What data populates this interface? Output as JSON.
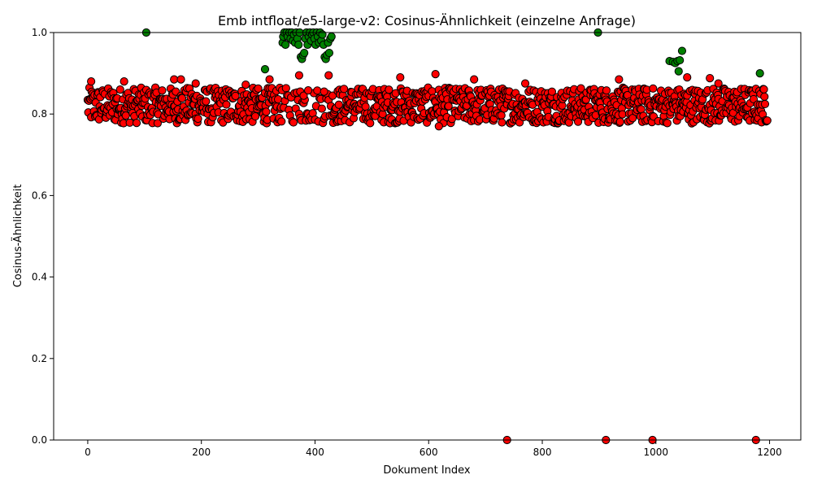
{
  "chart_data": {
    "type": "scatter",
    "title": "Emb intfloat/e5-large-v2: Cosinus-Ähnlichkeit (einzelne Anfrage)",
    "xlabel": "Dokument Index",
    "ylabel": "Cosinus-Ähnlichkeit",
    "xlim": [
      -60,
      1255
    ],
    "ylim": [
      0,
      1
    ],
    "xticks": [
      0,
      200,
      400,
      600,
      800,
      1000,
      1200
    ],
    "yticks": [
      0.0,
      0.2,
      0.4,
      0.6,
      0.8,
      1.0
    ],
    "ytick_labels": [
      "0.0",
      "0.2",
      "0.4",
      "0.6",
      "0.8",
      "1.0"
    ],
    "grid": false,
    "marker_edge_color": "#000000",
    "colors": {
      "relevant": "#008000",
      "irrelevant": "#ff0000"
    },
    "x_range": [
      0,
      1196
    ],
    "series": [
      {
        "key": "relevant",
        "color": "#008000",
        "points": [
          [
            103,
            1.0
          ],
          [
            312,
            0.91
          ],
          [
            343,
            0.975
          ],
          [
            344,
            0.99
          ],
          [
            346,
            1.0
          ],
          [
            348,
            0.97
          ],
          [
            350,
            1.0
          ],
          [
            352,
            0.99
          ],
          [
            355,
            1.0
          ],
          [
            357,
            0.985
          ],
          [
            359,
            1.0
          ],
          [
            361,
            0.98
          ],
          [
            363,
            0.995
          ],
          [
            365,
            0.975
          ],
          [
            367,
            1.0
          ],
          [
            369,
            0.985
          ],
          [
            371,
            0.97
          ],
          [
            373,
            1.0
          ],
          [
            375,
            0.94
          ],
          [
            377,
            0.935
          ],
          [
            379,
            0.945
          ],
          [
            381,
            0.95
          ],
          [
            383,
            0.985
          ],
          [
            385,
            1.0
          ],
          [
            387,
            0.97
          ],
          [
            389,
            0.99
          ],
          [
            391,
            1.0
          ],
          [
            393,
            0.98
          ],
          [
            395,
            0.995
          ],
          [
            397,
            1.0
          ],
          [
            399,
            0.985
          ],
          [
            401,
            0.97
          ],
          [
            403,
            1.0
          ],
          [
            405,
            0.99
          ],
          [
            407,
            0.975
          ],
          [
            409,
            1.0
          ],
          [
            411,
            0.98
          ],
          [
            413,
            0.995
          ],
          [
            415,
            0.97
          ],
          [
            417,
            0.94
          ],
          [
            419,
            0.935
          ],
          [
            421,
            0.945
          ],
          [
            423,
            0.975
          ],
          [
            425,
            0.95
          ],
          [
            427,
            0.985
          ],
          [
            429,
            0.99
          ],
          [
            898,
            1.0
          ],
          [
            1024,
            0.93
          ],
          [
            1030,
            0.928
          ],
          [
            1034,
            0.925
          ],
          [
            1038,
            0.93
          ],
          [
            1040,
            0.905
          ],
          [
            1042,
            0.932
          ],
          [
            1046,
            0.955
          ],
          [
            1183,
            0.9
          ]
        ]
      },
      {
        "key": "irrelevant",
        "color": "#ff0000",
        "special_points": [
          [
            6,
            0.88
          ],
          [
            64,
            0.88
          ],
          [
            152,
            0.885
          ],
          [
            164,
            0.885
          ],
          [
            190,
            0.875
          ],
          [
            278,
            0.872
          ],
          [
            320,
            0.885
          ],
          [
            372,
            0.895
          ],
          [
            374,
            0.855
          ],
          [
            380,
            0.845
          ],
          [
            388,
            0.858
          ],
          [
            416,
            0.855
          ],
          [
            424,
            0.895
          ],
          [
            550,
            0.89
          ],
          [
            612,
            0.898
          ],
          [
            618,
            0.77
          ],
          [
            680,
            0.885
          ],
          [
            770,
            0.875
          ],
          [
            935,
            0.885
          ],
          [
            1055,
            0.89
          ],
          [
            1095,
            0.888
          ],
          [
            1110,
            0.875
          ],
          [
            738,
            0.0
          ],
          [
            912,
            0.0
          ],
          [
            994,
            0.0
          ],
          [
            1176,
            0.0
          ]
        ]
      }
    ]
  }
}
